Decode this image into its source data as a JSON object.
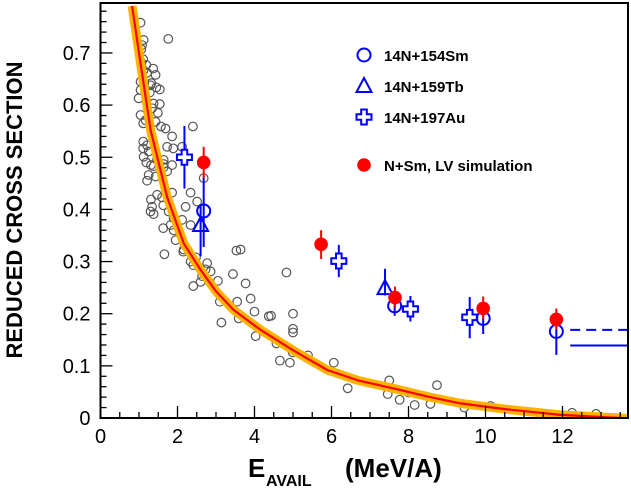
{
  "chart_data": {
    "type": "scatter",
    "title": "",
    "xlabel": "E_AVAIL (MeV/A)",
    "xlabel_main": "E",
    "xlabel_sub": "AVAIL",
    "xlabel_unit": "(MeV/A)",
    "ylabel": "REDUCED CROSS SECTION",
    "xlim": [
      0,
      13.8
    ],
    "ylim": [
      0,
      0.79
    ],
    "xticks": [
      0,
      2,
      4,
      6,
      8,
      10,
      12
    ],
    "xtick_labels": [
      "0",
      "2",
      "4",
      "6",
      "8",
      "10",
      "12"
    ],
    "yticks": [
      0,
      0.1,
      0.2,
      0.3,
      0.4,
      0.5,
      0.6,
      0.7
    ],
    "ytick_labels": [
      "0",
      "0.1",
      "0.2",
      "0.3",
      "0.4",
      "0.5",
      "0.6",
      "0.7"
    ],
    "grid": false,
    "legend_position": "upper right",
    "legend": [
      {
        "label": "14N+154Sm",
        "marker": "open-circle",
        "color": "#0000ff"
      },
      {
        "label": "14N+159Tb",
        "marker": "open-triangle",
        "color": "#0000ff"
      },
      {
        "label": "14N+197Au",
        "marker": "open-cross",
        "color": "#0000ff"
      },
      {
        "label": "N+Sm, LV simulation",
        "marker": "filled-circle",
        "color": "#ff0000"
      }
    ],
    "series": [
      {
        "name": "14N+154Sm",
        "marker": "open-circle",
        "color": "#0000ff",
        "points": [
          {
            "x": 2.68,
            "y": 0.397,
            "err_lo": 0.328,
            "err_hi": 0.466
          },
          {
            "x": 7.64,
            "y": 0.215,
            "err_lo": 0.196,
            "err_hi": 0.24
          },
          {
            "x": 9.94,
            "y": 0.191,
            "err_lo": 0.161,
            "err_hi": 0.21
          },
          {
            "x": 11.84,
            "y": 0.166,
            "err_lo": 0.121,
            "err_hi": 0.18
          }
        ]
      },
      {
        "name": "14N+159Tb",
        "marker": "open-triangle",
        "color": "#0000ff",
        "points": [
          {
            "x": 2.6,
            "y": 0.37,
            "err_lo": 0.31,
            "err_hi": 0.41
          },
          {
            "x": 7.39,
            "y": 0.249,
            "err_lo": 0.235,
            "err_hi": 0.286
          }
        ]
      },
      {
        "name": "14N+197Au",
        "marker": "open-cross",
        "color": "#0000ff",
        "points": [
          {
            "x": 2.18,
            "y": 0.5,
            "err_lo": 0.44,
            "err_hi": 0.56
          },
          {
            "x": 6.19,
            "y": 0.301,
            "err_lo": 0.27,
            "err_hi": 0.332
          },
          {
            "x": 8.05,
            "y": 0.209,
            "err_lo": 0.185,
            "err_hi": 0.234
          },
          {
            "x": 9.59,
            "y": 0.193,
            "err_lo": 0.153,
            "err_hi": 0.232
          }
        ]
      },
      {
        "name": "N+Sm, LV simulation",
        "marker": "filled-circle",
        "color": "#ff0000",
        "points": [
          {
            "x": 2.68,
            "y": 0.49,
            "err_lo": 0.46,
            "err_hi": 0.52
          },
          {
            "x": 5.73,
            "y": 0.333,
            "err_lo": 0.305,
            "err_hi": 0.36
          },
          {
            "x": 7.65,
            "y": 0.231,
            "err_lo": 0.212,
            "err_hi": 0.252
          },
          {
            "x": 9.94,
            "y": 0.21,
            "err_lo": 0.19,
            "err_hi": 0.233
          },
          {
            "x": 11.84,
            "y": 0.189,
            "err_lo": 0.17,
            "err_hi": 0.21
          }
        ]
      },
      {
        "name": "systematics (gray open circles)",
        "marker": "small-open-circle",
        "color": "#555555",
        "points": [
          [
            1.04,
            0.758
          ],
          [
            1.76,
            0.727
          ],
          [
            1.12,
            0.725
          ],
          [
            1.08,
            0.715
          ],
          [
            1.06,
            0.707
          ],
          [
            1.11,
            0.688
          ],
          [
            1.06,
            0.681
          ],
          [
            1.19,
            0.677
          ],
          [
            1.37,
            0.67
          ],
          [
            1.12,
            0.667
          ],
          [
            1.21,
            0.662
          ],
          [
            1.43,
            0.658
          ],
          [
            1.04,
            0.645
          ],
          [
            1.14,
            0.642
          ],
          [
            1.32,
            0.642
          ],
          [
            1.45,
            0.634
          ],
          [
            1.54,
            0.63
          ],
          [
            1.3,
            0.638
          ],
          [
            1.04,
            0.629
          ],
          [
            1.28,
            0.624
          ],
          [
            0.99,
            0.613
          ],
          [
            1.19,
            0.608
          ],
          [
            1.38,
            0.603
          ],
          [
            1.54,
            0.602
          ],
          [
            1.34,
            0.594
          ],
          [
            1.49,
            0.585
          ],
          [
            1.04,
            0.581
          ],
          [
            1.17,
            0.571
          ],
          [
            1.11,
            0.565
          ],
          [
            1.43,
            0.568
          ],
          [
            1.57,
            0.559
          ],
          [
            1.69,
            0.555
          ],
          [
            2.4,
            0.559
          ],
          [
            1.86,
            0.54
          ],
          [
            1.11,
            0.53
          ],
          [
            1.21,
            0.523
          ],
          [
            1.11,
            0.517
          ],
          [
            1.73,
            0.52
          ],
          [
            1.89,
            0.517
          ],
          [
            2.12,
            0.52
          ],
          [
            1.25,
            0.511
          ],
          [
            1.12,
            0.501
          ],
          [
            1.47,
            0.495
          ],
          [
            1.64,
            0.495
          ],
          [
            1.19,
            0.49
          ],
          [
            1.31,
            0.485
          ],
          [
            1.64,
            0.481
          ],
          [
            1.86,
            0.485
          ],
          [
            1.38,
            0.483
          ],
          [
            1.64,
            0.487
          ],
          [
            1.25,
            0.466
          ],
          [
            1.43,
            0.463
          ],
          [
            1.21,
            0.455
          ],
          [
            1.73,
            0.473
          ],
          [
            2.68,
            0.46
          ],
          [
            1.86,
            0.432
          ],
          [
            2.34,
            0.432
          ],
          [
            1.47,
            0.428
          ],
          [
            1.31,
            0.419
          ],
          [
            1.6,
            0.423
          ],
          [
            1.63,
            0.408
          ],
          [
            1.34,
            0.405
          ],
          [
            1.3,
            0.396
          ],
          [
            1.38,
            0.391
          ],
          [
            1.77,
            0.396
          ],
          [
            2.21,
            0.405
          ],
          [
            2.51,
            0.415
          ],
          [
            1.9,
            0.383
          ],
          [
            2.12,
            0.38
          ],
          [
            1.82,
            0.37
          ],
          [
            1.63,
            0.364
          ],
          [
            1.9,
            0.36
          ],
          [
            2.34,
            0.37
          ],
          [
            1.95,
            0.341
          ],
          [
            2.16,
            0.323
          ],
          [
            1.66,
            0.314
          ],
          [
            2.15,
            0.319
          ],
          [
            2.48,
            0.308
          ],
          [
            2.34,
            0.3
          ],
          [
            2.41,
            0.293
          ],
          [
            2.77,
            0.297
          ],
          [
            2.73,
            0.285
          ],
          [
            2.86,
            0.281
          ],
          [
            2.64,
            0.272
          ],
          [
            2.6,
            0.261
          ],
          [
            2.41,
            0.253
          ],
          [
            3.05,
            0.263
          ],
          [
            3.44,
            0.276
          ],
          [
            3.53,
            0.321
          ],
          [
            3.64,
            0.323
          ],
          [
            3.77,
            0.258
          ],
          [
            4.83,
            0.279
          ],
          [
            3.1,
            0.223
          ],
          [
            3.55,
            0.223
          ],
          [
            3.9,
            0.229
          ],
          [
            4.0,
            0.204
          ],
          [
            3.14,
            0.183
          ],
          [
            3.59,
            0.191
          ],
          [
            4.03,
            0.157
          ],
          [
            4.37,
            0.195
          ],
          [
            4.43,
            0.196
          ],
          [
            5.0,
            0.2
          ],
          [
            5.0,
            0.171
          ],
          [
            5.0,
            0.164
          ],
          [
            4.57,
            0.143
          ],
          [
            4.99,
            0.126
          ],
          [
            5.39,
            0.12
          ],
          [
            4.66,
            0.11
          ],
          [
            4.92,
            0.106
          ],
          [
            6.06,
            0.106
          ],
          [
            6.42,
            0.057
          ],
          [
            7.5,
            0.072
          ],
          [
            7.46,
            0.046
          ],
          [
            7.77,
            0.035
          ],
          [
            8.0,
            0.049
          ],
          [
            8.16,
            0.025
          ],
          [
            8.57,
            0.027
          ],
          [
            8.74,
            0.063
          ],
          [
            9.45,
            0.02
          ],
          [
            10.13,
            0.023
          ],
          [
            12.25,
            0.01
          ],
          [
            12.87,
            0.008
          ]
        ]
      },
      {
        "name": "fit curve",
        "type": "line",
        "color": "#ff0000",
        "band_color": "#ffb300",
        "points": [
          [
            0.82,
            0.79
          ],
          [
            1.0,
            0.7
          ],
          [
            1.3,
            0.552
          ],
          [
            1.73,
            0.424
          ],
          [
            2.16,
            0.335
          ],
          [
            2.6,
            0.284
          ],
          [
            3.0,
            0.243
          ],
          [
            3.46,
            0.207
          ],
          [
            4.16,
            0.169
          ],
          [
            5.0,
            0.13
          ],
          [
            5.89,
            0.092
          ],
          [
            6.7,
            0.072
          ],
          [
            7.6,
            0.057
          ],
          [
            8.5,
            0.041
          ],
          [
            9.35,
            0.028
          ],
          [
            10.5,
            0.017
          ],
          [
            11.95,
            0.006
          ],
          [
            13.5,
            0.0
          ],
          [
            13.8,
            -0.002
          ]
        ]
      },
      {
        "name": "reference lines at E>12",
        "type": "hline",
        "lines": [
          {
            "y": 0.169,
            "x_from": 12.2,
            "x_to": 13.8,
            "style": "dashed",
            "color": "#0000ff"
          },
          {
            "y": 0.139,
            "x_from": 12.2,
            "x_to": 13.8,
            "style": "solid",
            "color": "#0000ff"
          }
        ]
      }
    ]
  }
}
